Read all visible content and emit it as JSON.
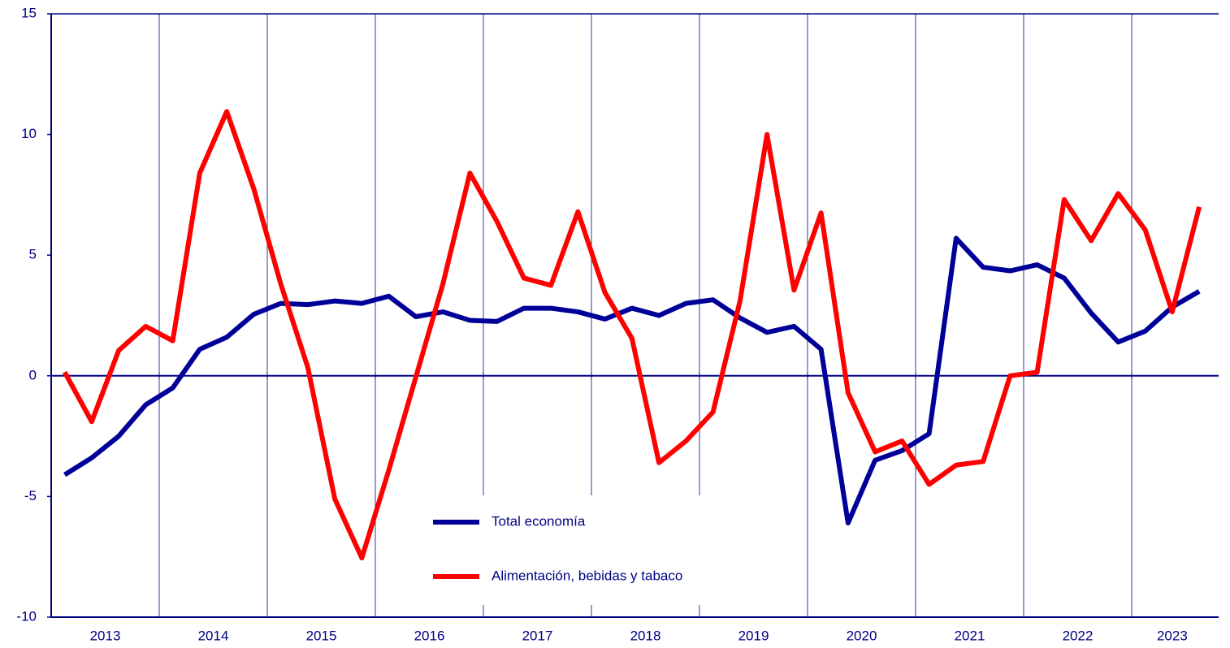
{
  "chart_data": {
    "type": "line",
    "categories": [
      "2013",
      null,
      null,
      null,
      "2014",
      null,
      null,
      null,
      "2015",
      null,
      null,
      null,
      "2016",
      null,
      null,
      null,
      "2017",
      null,
      null,
      null,
      "2018",
      null,
      null,
      null,
      "2019",
      null,
      null,
      null,
      "2020",
      null,
      null,
      null,
      "2021",
      null,
      null,
      null,
      "2022",
      null,
      null,
      null,
      "2023",
      null,
      null
    ],
    "series": [
      {
        "name": "Total economía",
        "color": "#000099",
        "values": [
          -4.1,
          -3.4,
          -2.5,
          -1.2,
          -0.5,
          1.1,
          1.6,
          2.55,
          3.0,
          2.95,
          3.1,
          3.0,
          3.3,
          2.45,
          2.65,
          2.3,
          2.25,
          2.8,
          2.8,
          2.65,
          2.35,
          2.8,
          2.5,
          3.0,
          3.15,
          2.4,
          1.8,
          2.05,
          1.1,
          -6.1,
          -3.5,
          -3.1,
          -2.4,
          5.7,
          4.5,
          4.35,
          4.6,
          4.05,
          2.6,
          1.4,
          1.85,
          2.85,
          3.5
        ]
      },
      {
        "name": "Alimentación, bebidas y tabaco",
        "color": "#ff0000",
        "values": [
          0.15,
          -1.9,
          1.05,
          2.05,
          1.45,
          8.4,
          10.95,
          7.75,
          3.8,
          0.35,
          -5.1,
          -7.55,
          -3.9,
          -0.05,
          3.8,
          8.4,
          6.4,
          4.05,
          3.75,
          6.8,
          3.45,
          1.55,
          -3.6,
          -2.7,
          -1.5,
          3.1,
          10.0,
          3.55,
          6.75,
          -0.7,
          -3.15,
          -2.7,
          -4.5,
          -3.7,
          -3.55,
          0.0,
          0.15,
          7.3,
          5.6,
          7.55,
          6.05,
          2.65,
          7.0
        ]
      }
    ],
    "ylim": [
      -10,
      15
    ],
    "yticks": [
      -10,
      -5,
      0,
      5,
      10,
      15
    ],
    "grid": true,
    "legend": "bottom"
  }
}
